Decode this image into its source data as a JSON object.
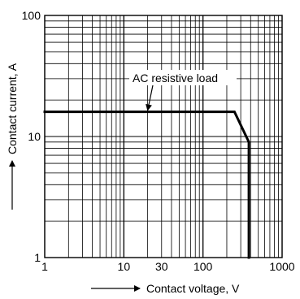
{
  "chart_data": {
    "type": "line",
    "x_scale": "log",
    "y_scale": "log",
    "xlim": [
      1,
      1000
    ],
    "ylim": [
      1,
      100
    ],
    "grid": true,
    "xlabel": "Contact voltage, V",
    "ylabel": "Contact current, A",
    "x_ticks": [
      {
        "value": 1,
        "label": "1"
      },
      {
        "value": 10,
        "label": "10"
      },
      {
        "value": 30,
        "label": "30"
      },
      {
        "value": 100,
        "label": "100"
      },
      {
        "value": 1000,
        "label": "1000"
      }
    ],
    "y_ticks": [
      {
        "value": 1,
        "label": "1"
      },
      {
        "value": 10,
        "label": "10"
      },
      {
        "value": 100,
        "label": "100"
      }
    ],
    "series": [
      {
        "name": "AC resistive load",
        "color": "#000000",
        "points": [
          {
            "x": 1,
            "y": 16
          },
          {
            "x": 250,
            "y": 16
          },
          {
            "x": 380,
            "y": 9
          },
          {
            "x": 380,
            "y": 1
          }
        ]
      }
    ],
    "annotations": [
      {
        "text": "AC resistive load",
        "points_to": {
          "x": 20,
          "y": 16
        }
      }
    ],
    "colors": {
      "grid": "#000000",
      "curve": "#000000",
      "background": "#ffffff"
    }
  }
}
